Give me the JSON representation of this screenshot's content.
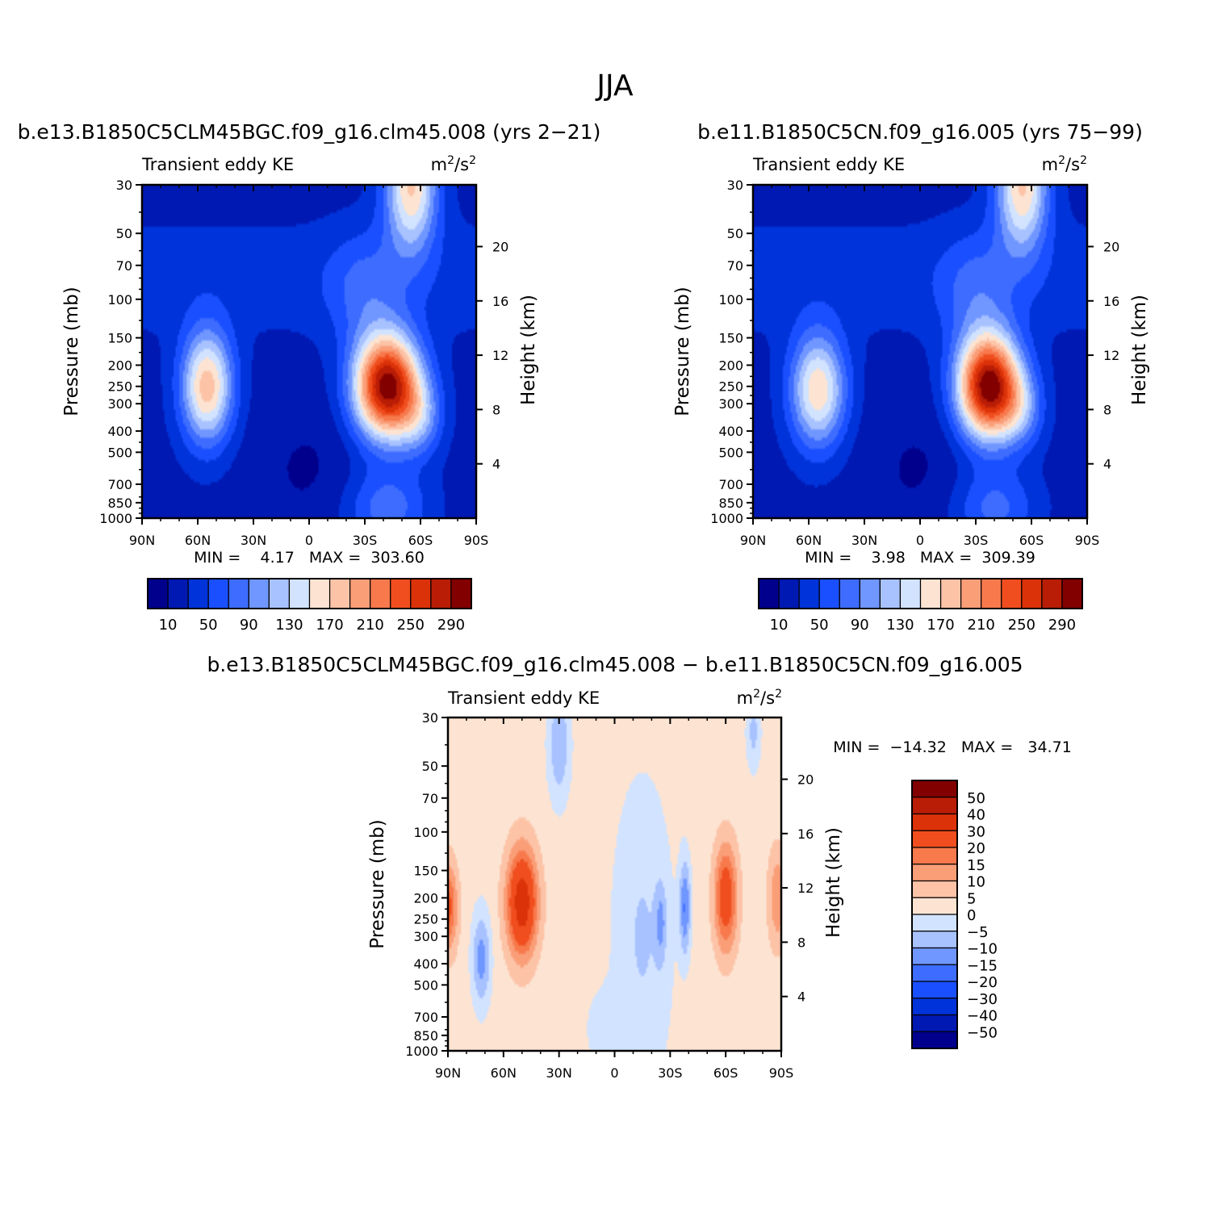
{
  "page": {
    "season": "JJA",
    "diff_title": "b.e13.B1850C5CLM45BGC.f09_g16.clm45.008 − b.e11.B1850C5CN.f09_g16.005"
  },
  "panels": [
    {
      "title": "b.e13.B1850C5CLM45BGC.f09_g16.clm45.008 (yrs 2−21)",
      "left_label": "Transient eddy KE",
      "units_base": "m",
      "units_sup1": "2",
      "units_mid": "/s",
      "units_sup2": "2",
      "minmax": "MIN =    4.17   MAX =  303.60"
    },
    {
      "title": "b.e11.B1850C5CN.f09_g16.005 (yrs 75−99)",
      "left_label": "Transient eddy KE",
      "units_base": "m",
      "units_sup1": "2",
      "units_mid": "/s",
      "units_sup2": "2",
      "minmax": "MIN =    3.98   MAX =  309.39"
    },
    {
      "title": "",
      "left_label": "Transient eddy KE",
      "units_base": "m",
      "units_sup1": "2",
      "units_mid": "/s",
      "units_sup2": "2",
      "minmax": "MIN =  −14.32   MAX =   34.71"
    }
  ],
  "axes": {
    "ylabel_left": "Pressure (mb)",
    "ylabel_right": "Height (km)",
    "pressure_ticks": [
      "30",
      "50",
      "70",
      "100",
      "150",
      "200",
      "250",
      "300",
      "400",
      "500",
      "700",
      "850",
      "1000"
    ],
    "height_ticks": [
      "20",
      "16",
      "12",
      "8",
      "4"
    ],
    "lat_ticks": [
      "90N",
      "60N",
      "30N",
      "0",
      "30S",
      "60S",
      "90S"
    ]
  },
  "colorbars": {
    "full": {
      "labels": [
        "10",
        "50",
        "90",
        "130",
        "170",
        "210",
        "250",
        "290"
      ],
      "colors": [
        "#00008c",
        "#0019b3",
        "#0033d9",
        "#1a4fff",
        "#3d6cff",
        "#7096ff",
        "#a8c2ff",
        "#d2e3ff",
        "#fde4d2",
        "#fcc3a7",
        "#fa9e78",
        "#f7794c",
        "#f04e1e",
        "#dc3209",
        "#b91d06",
        "#820000"
      ]
    },
    "diff": {
      "labels": [
        "50",
        "40",
        "30",
        "20",
        "15",
        "10",
        "5",
        "0",
        "−5",
        "−10",
        "−15",
        "−20",
        "−30",
        "−40",
        "−50"
      ],
      "colors": [
        "#820000",
        "#b91d06",
        "#dc3209",
        "#f04e1e",
        "#f7794c",
        "#fa9e78",
        "#fcc3a7",
        "#fde4d2",
        "#d2e3ff",
        "#a8c2ff",
        "#7096ff",
        "#3d6cff",
        "#1a4fff",
        "#0033d9",
        "#0019b3",
        "#00008c"
      ]
    }
  },
  "chart_data": [
    {
      "type": "heatmap",
      "title": "b.e13.B1850C5CLM45BGC.f09_g16.clm45.008 (yrs 2−21)",
      "variable": "Transient eddy KE",
      "units": "m2/s2",
      "x_axis": "latitude",
      "xlim": [
        90,
        -90
      ],
      "y_axis": "pressure (mb), log scale",
      "ylim": [
        1000,
        30
      ],
      "levels": [
        10,
        30,
        50,
        70,
        90,
        110,
        130,
        150,
        170,
        190,
        210,
        230,
        250,
        270,
        290
      ],
      "features": [
        {
          "name": "SH jet maximum",
          "lat": -42,
          "pressure_mb": 260,
          "value": 303.6
        },
        {
          "name": "NH jet maximum",
          "lat": 57,
          "pressure_mb": 250,
          "value": 190
        },
        {
          "name": "SH stratosphere",
          "lat": -55,
          "pressure_mb": 30,
          "value": 170
        },
        {
          "name": "tropical troposphere minimum",
          "lat": 0,
          "pressure_mb": 600,
          "value": 4.17
        }
      ],
      "min": 4.17,
      "max": 303.6
    },
    {
      "type": "heatmap",
      "title": "b.e11.B1850C5CN.f09_g16.005 (yrs 75−99)",
      "variable": "Transient eddy KE",
      "units": "m2/s2",
      "x_axis": "latitude",
      "xlim": [
        90,
        -90
      ],
      "y_axis": "pressure (mb), log scale",
      "ylim": [
        1000,
        30
      ],
      "levels": [
        10,
        30,
        50,
        70,
        90,
        110,
        130,
        150,
        170,
        190,
        210,
        230,
        250,
        270,
        290
      ],
      "features": [
        {
          "name": "SH jet maximum",
          "lat": -37,
          "pressure_mb": 260,
          "value": 309.39
        },
        {
          "name": "NH jet maximum",
          "lat": 57,
          "pressure_mb": 250,
          "value": 180
        },
        {
          "name": "SH stratosphere",
          "lat": -55,
          "pressure_mb": 30,
          "value": 170
        },
        {
          "name": "tropical troposphere minimum",
          "lat": 0,
          "pressure_mb": 600,
          "value": 3.98
        }
      ],
      "min": 3.98,
      "max": 309.39
    },
    {
      "type": "heatmap",
      "title": "b.e13.B1850C5CLM45BGC.f09_g16.clm45.008 − b.e11.B1850C5CN.f09_g16.005",
      "variable": "Transient eddy KE",
      "units": "m2/s2",
      "x_axis": "latitude",
      "xlim": [
        90,
        -90
      ],
      "y_axis": "pressure (mb), log scale",
      "ylim": [
        1000,
        30
      ],
      "levels": [
        -50,
        -40,
        -30,
        -20,
        -15,
        -10,
        -5,
        0,
        5,
        10,
        15,
        20,
        30,
        40,
        50
      ],
      "features": [
        {
          "name": "NH midlatitude increase",
          "lat": 50,
          "pressure_mb": 200,
          "value": 34.71
        },
        {
          "name": "SH midlatitude increase",
          "lat": -60,
          "pressure_mb": 200,
          "value": 25
        },
        {
          "name": "NH polar increase",
          "lat": 90,
          "pressure_mb": 220,
          "value": 20
        },
        {
          "name": "SH subtropical decrease",
          "lat": -38,
          "pressure_mb": 220,
          "value": -14.32
        },
        {
          "name": "NH high-latitude decrease",
          "lat": 72,
          "pressure_mb": 380,
          "value": -12
        }
      ],
      "min": -14.32,
      "max": 34.71
    }
  ]
}
